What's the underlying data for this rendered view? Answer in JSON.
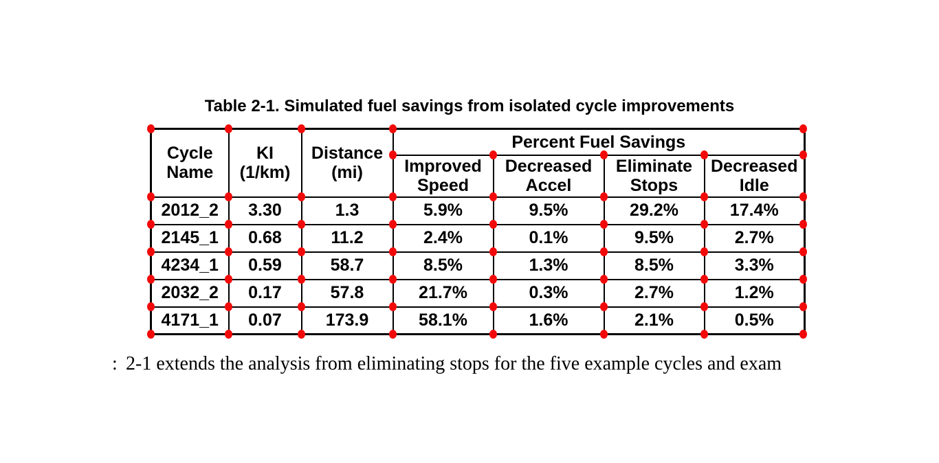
{
  "title": "Table 2-1. Simulated fuel savings from isolated cycle improvements",
  "table": {
    "columns": [
      {
        "label": "Cycle\nName"
      },
      {
        "label": "KI\n(1/km)"
      },
      {
        "label": "Distance\n(mi)"
      }
    ],
    "group_header": "Percent Fuel Savings",
    "sub_columns": [
      "Improved\nSpeed",
      "Decreased\nAccel",
      "Eliminate\nStops",
      "Decreased\nIdle"
    ],
    "rows": [
      [
        "2012_2",
        "3.30",
        "1.3",
        "5.9%",
        "9.5%",
        "29.2%",
        "17.4%"
      ],
      [
        "2145_1",
        "0.68",
        "11.2",
        "2.4%",
        "0.1%",
        "9.5%",
        "2.7%"
      ],
      [
        "4234_1",
        "0.59",
        "58.7",
        "8.5%",
        "1.3%",
        "8.5%",
        "3.3%"
      ],
      [
        "2032_2",
        "0.17",
        "57.8",
        "21.7%",
        "0.3%",
        "2.7%",
        "1.2%"
      ],
      [
        "4171_1",
        "0.07",
        "173.9",
        "58.1%",
        "1.6%",
        "2.1%",
        "0.5%"
      ]
    ]
  },
  "body_text": {
    "left_fragment": ":",
    "line": "2-1 extends the analysis from eliminating stops for the five example cycles and exam"
  },
  "annotations": {
    "marker_color": "#f20a0a"
  },
  "colors": {
    "text": "#000000",
    "background": "#ffffff",
    "table_border": "#000000"
  }
}
